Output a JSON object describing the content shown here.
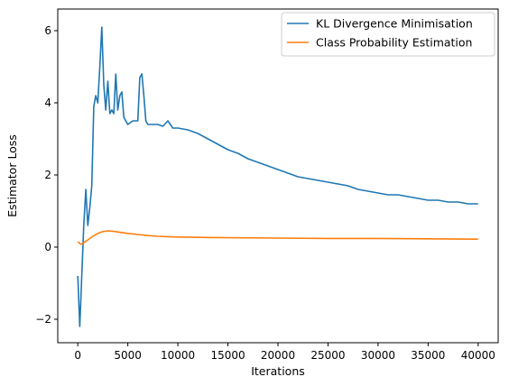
{
  "chart_data": {
    "type": "line",
    "title": "",
    "xlabel": "Iterations",
    "ylabel": "Estimator Loss",
    "xlim": [
      -2000,
      42000
    ],
    "ylim": [
      -2.65,
      6.6
    ],
    "xticks": [
      0,
      5000,
      10000,
      15000,
      20000,
      25000,
      30000,
      35000,
      40000
    ],
    "yticks": [
      -2,
      0,
      2,
      4,
      6
    ],
    "xtick_labels": [
      "0",
      "5000",
      "10000",
      "15000",
      "20000",
      "25000",
      "30000",
      "35000",
      "40000"
    ],
    "ytick_labels": [
      "−2",
      "0",
      "2",
      "4",
      "6"
    ],
    "grid": false,
    "legend_position": "top-right",
    "series": [
      {
        "name": "KL Divergence Minimisation",
        "color": "#1f77b4",
        "x": [
          0,
          200,
          400,
          600,
          800,
          1000,
          1200,
          1400,
          1600,
          1800,
          2000,
          2200,
          2400,
          2600,
          2800,
          3000,
          3200,
          3400,
          3600,
          3800,
          4000,
          4200,
          4400,
          4600,
          5000,
          5500,
          6000,
          6200,
          6400,
          6600,
          6800,
          7000,
          7500,
          8000,
          8500,
          9000,
          9500,
          10000,
          11000,
          12000,
          13000,
          14000,
          15000,
          16000,
          17000,
          18000,
          19000,
          20000,
          21000,
          22000,
          23000,
          24000,
          25000,
          26000,
          27000,
          28000,
          29000,
          30000,
          31000,
          32000,
          33000,
          34000,
          35000,
          36000,
          37000,
          38000,
          39000,
          40000
        ],
        "y": [
          -0.8,
          -2.2,
          -0.8,
          0.6,
          1.6,
          0.6,
          1.1,
          1.7,
          3.9,
          4.2,
          4.0,
          5.0,
          6.1,
          4.5,
          3.8,
          4.6,
          3.7,
          3.8,
          3.7,
          4.8,
          3.8,
          4.2,
          4.3,
          3.6,
          3.4,
          3.5,
          3.5,
          4.7,
          4.8,
          4.2,
          3.5,
          3.4,
          3.4,
          3.4,
          3.35,
          3.5,
          3.3,
          3.3,
          3.25,
          3.15,
          3.0,
          2.85,
          2.7,
          2.6,
          2.45,
          2.35,
          2.25,
          2.15,
          2.05,
          1.95,
          1.9,
          1.85,
          1.8,
          1.75,
          1.7,
          1.6,
          1.55,
          1.5,
          1.45,
          1.45,
          1.4,
          1.35,
          1.3,
          1.3,
          1.25,
          1.25,
          1.2,
          1.2
        ]
      },
      {
        "name": "Class Probability Estimation",
        "color": "#ff7f0e",
        "x": [
          0,
          300,
          600,
          1000,
          1500,
          2000,
          2500,
          3000,
          3500,
          4000,
          5000,
          6000,
          7000,
          8000,
          9000,
          10000,
          12000,
          15000,
          20000,
          25000,
          30000,
          35000,
          40000
        ],
        "y": [
          0.15,
          0.08,
          0.12,
          0.2,
          0.3,
          0.38,
          0.43,
          0.45,
          0.44,
          0.42,
          0.38,
          0.35,
          0.32,
          0.3,
          0.29,
          0.28,
          0.27,
          0.26,
          0.25,
          0.24,
          0.24,
          0.23,
          0.22
        ]
      }
    ]
  }
}
